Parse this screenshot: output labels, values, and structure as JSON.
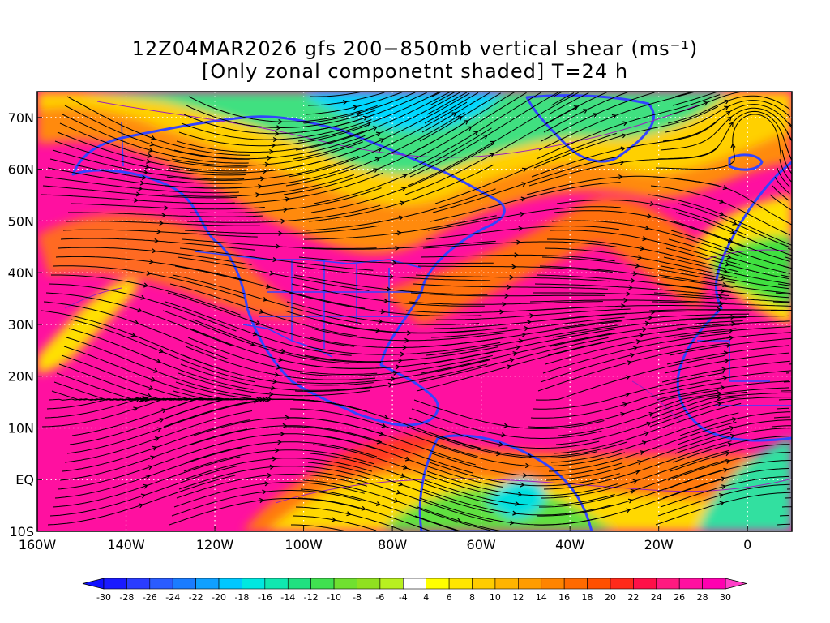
{
  "title": {
    "line1": "12Z04MAR2026 gfs 200−850mb vertical shear (ms⁻¹)",
    "line2": "[Only zonal componetnt shaded] T=24 h"
  },
  "map": {
    "lon_range": [
      -160,
      10
    ],
    "lat_range": [
      -10,
      75
    ],
    "lon_ticks": [
      {
        "value": -160,
        "label": "160W"
      },
      {
        "value": -140,
        "label": "140W"
      },
      {
        "value": -120,
        "label": "120W"
      },
      {
        "value": -100,
        "label": "100W"
      },
      {
        "value": -80,
        "label": "80W"
      },
      {
        "value": -60,
        "label": "60W"
      },
      {
        "value": -40,
        "label": "40W"
      },
      {
        "value": -20,
        "label": "20W"
      },
      {
        "value": 0,
        "label": "0"
      }
    ],
    "lat_ticks": [
      {
        "value": 70,
        "label": "70N"
      },
      {
        "value": 60,
        "label": "60N"
      },
      {
        "value": 50,
        "label": "50N"
      },
      {
        "value": 40,
        "label": "40N"
      },
      {
        "value": 30,
        "label": "30N"
      },
      {
        "value": 20,
        "label": "20N"
      },
      {
        "value": 10,
        "label": "10N"
      },
      {
        "value": 0,
        "label": "EQ"
      },
      {
        "value": -10,
        "label": "10S"
      }
    ],
    "gridlines": "dotted",
    "coastline_color": "#3344ff",
    "streamline_color": "#000000",
    "contour_color": "#9922bb"
  },
  "colorbar": {
    "labels": [
      "-30",
      "-28",
      "-26",
      "-24",
      "-22",
      "-20",
      "-18",
      "-16",
      "-14",
      "-12",
      "-10",
      "-8",
      "-6",
      "-4",
      "4",
      "6",
      "8",
      "10",
      "12",
      "14",
      "16",
      "18",
      "20",
      "22",
      "24",
      "26",
      "28",
      "30"
    ],
    "colors": [
      "#1a1aff",
      "#2a3cff",
      "#2a5cff",
      "#1a7cff",
      "#0fa0ff",
      "#00c8ff",
      "#00e8e0",
      "#10e8b0",
      "#20e080",
      "#40e050",
      "#70e030",
      "#90e020",
      "#b8f020",
      "#ffffff",
      "#ffff00",
      "#ffe600",
      "#ffcc00",
      "#ffb400",
      "#ff9c00",
      "#ff8400",
      "#ff6a00",
      "#ff5000",
      "#ff2a1a",
      "#ff1048",
      "#ff1a80",
      "#ff10a0",
      "#ff00b0"
    ],
    "under_color": "#1010ff",
    "over_color": "#ff40c8"
  }
}
